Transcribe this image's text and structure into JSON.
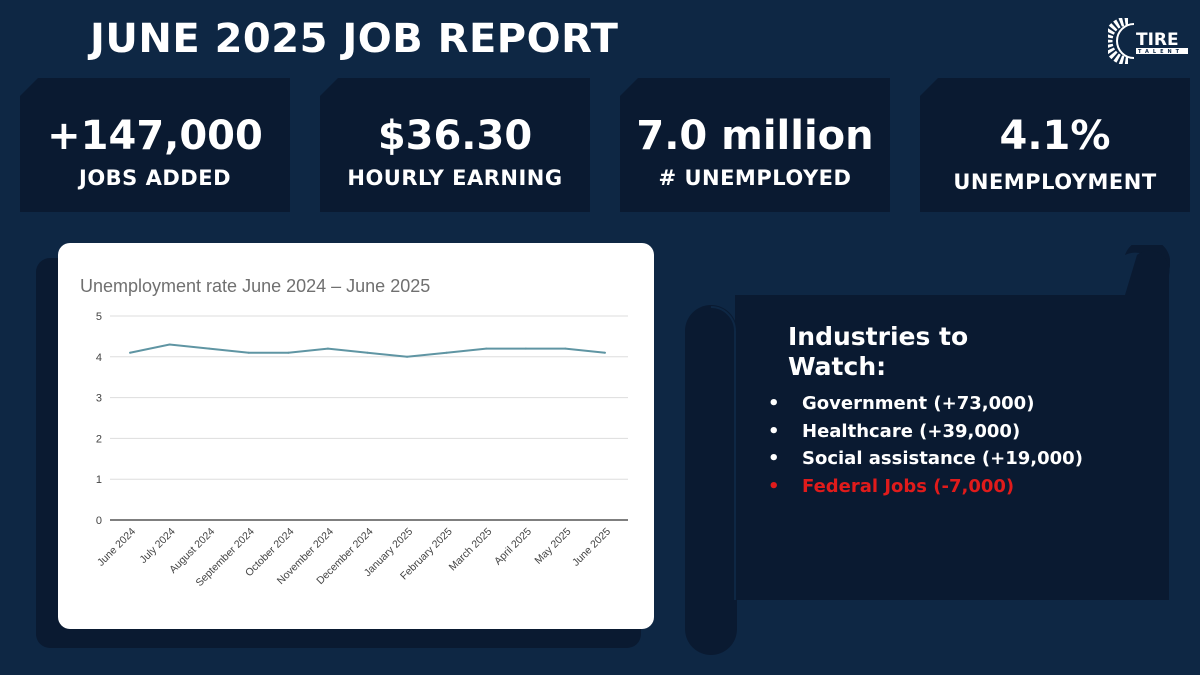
{
  "header": {
    "title": "JUNE 2025 JOB REPORT",
    "logo_text": "TIRE TALENT"
  },
  "stats": [
    {
      "value": "+147,000",
      "label": "JOBS ADDED"
    },
    {
      "value": "$36.30",
      "label": "HOURLY EARNING"
    },
    {
      "value": "7.0 million",
      "label": "# UNEMPLOYED"
    },
    {
      "value": "4.1%",
      "label": "UNEMPLOYMENT"
    }
  ],
  "industries": {
    "title": "Industries to Watch:",
    "items": [
      {
        "text": "Government (+73,000)",
        "color": "#ffffff"
      },
      {
        "text": "Healthcare  (+39,000)",
        "color": "#ffffff"
      },
      {
        "text": "Social assistance (+19,000)",
        "color": "#ffffff"
      },
      {
        "text": "Federal Jobs (-7,000)",
        "color": "#e01b1b"
      }
    ]
  },
  "chart_data": {
    "type": "line",
    "title": "Unemployment rate June 2024 – June 2025",
    "categories": [
      "June 2024",
      "July 2024",
      "August 2024",
      "September 2024",
      "October 2024",
      "November 2024",
      "December 2024",
      "January 2025",
      "February 2025",
      "March 2025",
      "April 2025",
      "May 2025",
      "June 2025"
    ],
    "values": [
      4.1,
      4.3,
      4.2,
      4.1,
      4.1,
      4.2,
      4.1,
      4.0,
      4.1,
      4.2,
      4.2,
      4.2,
      4.1
    ],
    "ylim": [
      0,
      5
    ],
    "yticks": [
      "0",
      "1",
      "2",
      "3",
      "4",
      "5"
    ],
    "grid": true,
    "line_color": "#5f95a3"
  }
}
